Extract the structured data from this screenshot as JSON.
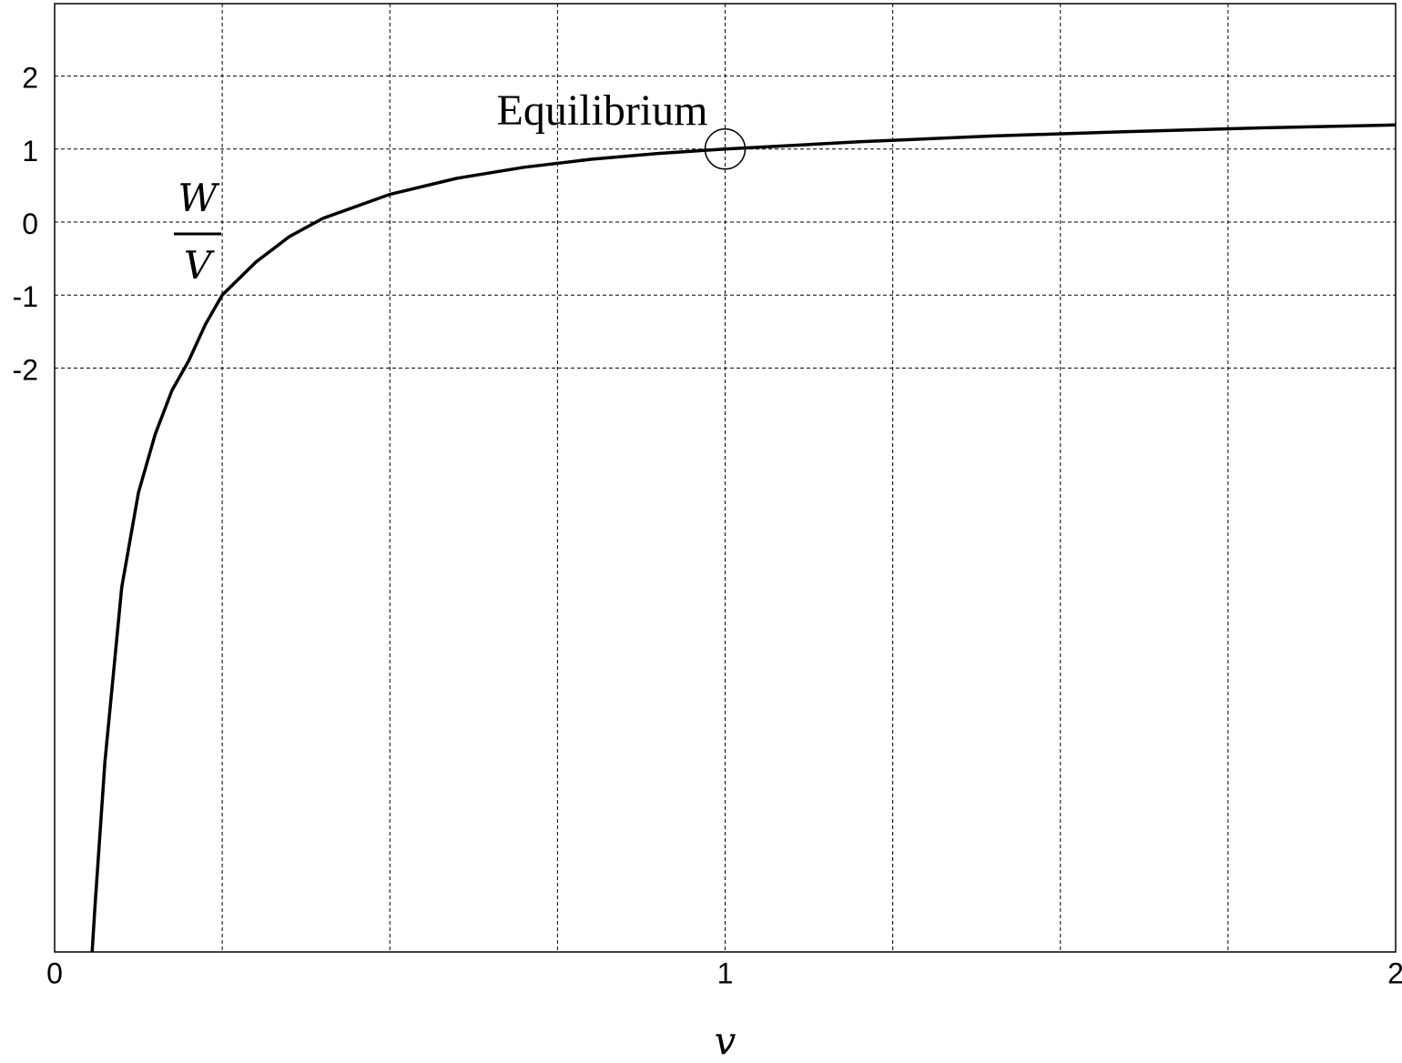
{
  "chart_data": {
    "type": "line",
    "title": "",
    "xlabel": "v",
    "ylabel": {
      "numerator": "W",
      "denominator": "V"
    },
    "xlim": [
      0,
      2
    ],
    "ylim": [
      -10,
      3
    ],
    "grid": true,
    "legend": "none",
    "x_ticks": [
      {
        "value": 0,
        "label": "0"
      },
      {
        "value": 1,
        "label": "1"
      },
      {
        "value": 2,
        "label": "2"
      }
    ],
    "x_gridlines": [
      0.25,
      0.5,
      0.75,
      1,
      1.25,
      1.5,
      1.75
    ],
    "y_ticks": [
      {
        "value": 2,
        "label": "2"
      },
      {
        "value": 1,
        "label": "1"
      },
      {
        "value": 0,
        "label": "0"
      },
      {
        "value": -1,
        "label": "-1"
      },
      {
        "value": -2,
        "label": "-2"
      }
    ],
    "series": [
      {
        "color": "#000000",
        "x": [
          0.056,
          0.06,
          0.075,
          0.1,
          0.125,
          0.15,
          0.175,
          0.2,
          0.225,
          0.25,
          0.3,
          0.35,
          0.4,
          0.5,
          0.6,
          0.7,
          0.8,
          0.9,
          1.0,
          1.2,
          1.4,
          1.6,
          1.8,
          2.0
        ],
        "y": [
          -10.0,
          -9.4,
          -7.4,
          -5.0,
          -3.7,
          -2.9,
          -2.3,
          -1.9,
          -1.4,
          -1.0,
          -0.55,
          -0.2,
          0.05,
          0.38,
          0.6,
          0.75,
          0.86,
          0.94,
          1.0,
          1.1,
          1.18,
          1.24,
          1.29,
          1.33
        ]
      }
    ],
    "annotations": [
      {
        "text": "Equilibrium",
        "x": 1.0,
        "y": 1.0,
        "marker": "circle"
      }
    ]
  }
}
